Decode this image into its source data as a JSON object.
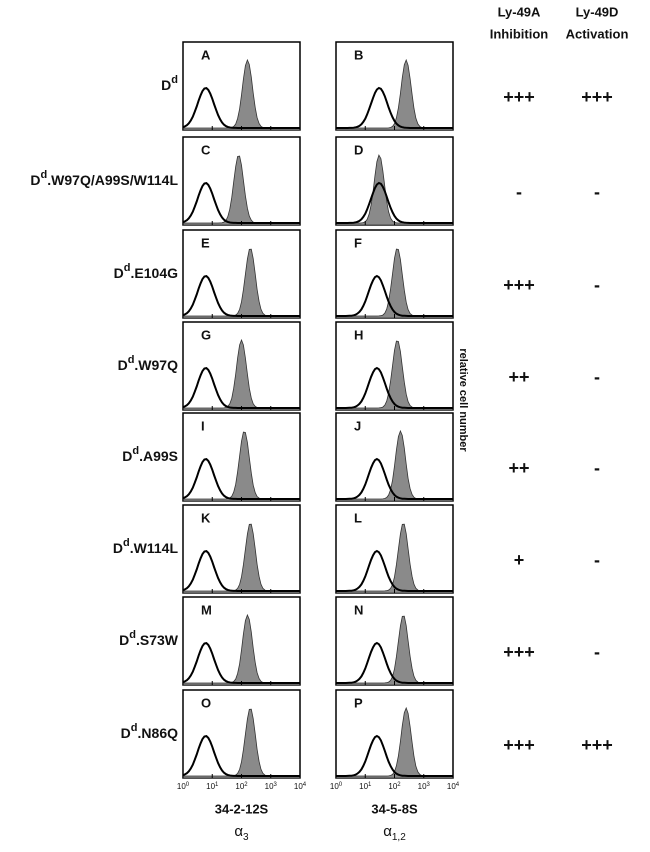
{
  "headers": [
    {
      "line1": "Ly-49A",
      "line2": "Inhibition"
    },
    {
      "line1": "Ly-49D",
      "line2": "Activation"
    }
  ],
  "histogram_axis": {
    "xlim": [
      1,
      10000
    ],
    "log": true,
    "ylabel": "relative cell number",
    "xticks": [
      {
        "value": 1,
        "label_base": "10",
        "label_exp": "0"
      },
      {
        "value": 10,
        "label_base": "10",
        "label_exp": "1"
      },
      {
        "value": 100,
        "label_base": "10",
        "label_exp": "2"
      },
      {
        "value": 1000,
        "label_base": "10",
        "label_exp": "3"
      },
      {
        "value": 10000,
        "label_base": "10",
        "label_exp": "4"
      }
    ]
  },
  "columns": [
    {
      "antibody": "34-2-12S",
      "specificity": "α",
      "specificity_sub": "3"
    },
    {
      "antibody": "34-5-8S",
      "specificity": "α",
      "specificity_sub": "1,2"
    }
  ],
  "rows": [
    {
      "label_base": "D",
      "label_sup": "d",
      "inhibition": "+++",
      "activation": "+++",
      "panels": [
        {
          "letter": "A",
          "open_peak": 6,
          "filled_peak": 160
        },
        {
          "letter": "B",
          "open_peak": 30,
          "filled_peak": 250
        }
      ]
    },
    {
      "label_base": "D",
      "label_sup": "d",
      "label_rest": ".W97Q/A99S/W114L",
      "inhibition": "-",
      "activation": "-",
      "panels": [
        {
          "letter": "C",
          "open_peak": 6,
          "filled_peak": 80
        },
        {
          "letter": "D",
          "open_peak": 30,
          "filled_peak": 30
        }
      ]
    },
    {
      "label_base": "D",
      "label_sup": "d",
      "label_rest": ".E104G",
      "inhibition": "+++",
      "activation": "-",
      "panels": [
        {
          "letter": "E",
          "open_peak": 6,
          "filled_peak": 200
        },
        {
          "letter": "F",
          "open_peak": 25,
          "filled_peak": 125
        }
      ]
    },
    {
      "label_base": "D",
      "label_sup": "d",
      "label_rest": ".W97Q",
      "inhibition": "++",
      "activation": "-",
      "panels": [
        {
          "letter": "G",
          "open_peak": 6,
          "filled_peak": 100
        },
        {
          "letter": "H",
          "open_peak": 25,
          "filled_peak": 125
        }
      ]
    },
    {
      "label_base": "D",
      "label_sup": "d",
      "label_rest": ".A99S",
      "inhibition": "++",
      "activation": "-",
      "panels": [
        {
          "letter": "I",
          "open_peak": 6,
          "filled_peak": 125
        },
        {
          "letter": "J",
          "open_peak": 25,
          "filled_peak": 160
        }
      ]
    },
    {
      "label_base": "D",
      "label_sup": "d",
      "label_rest": ".W114L",
      "inhibition": "+",
      "activation": "-",
      "panels": [
        {
          "letter": "K",
          "open_peak": 6,
          "filled_peak": 200
        },
        {
          "letter": "L",
          "open_peak": 25,
          "filled_peak": 200
        }
      ]
    },
    {
      "label_base": "D",
      "label_sup": "d",
      "label_rest": ".S73W",
      "inhibition": "+++",
      "activation": "-",
      "panels": [
        {
          "letter": "M",
          "open_peak": 6,
          "filled_peak": 160
        },
        {
          "letter": "N",
          "open_peak": 25,
          "filled_peak": 200
        }
      ]
    },
    {
      "label_base": "D",
      "label_sup": "d",
      "label_rest": ".N86Q",
      "inhibition": "+++",
      "activation": "+++",
      "panels": [
        {
          "letter": "O",
          "open_peak": 6,
          "filled_peak": 200
        },
        {
          "letter": "P",
          "open_peak": 25,
          "filled_peak": 250
        }
      ]
    }
  ]
}
